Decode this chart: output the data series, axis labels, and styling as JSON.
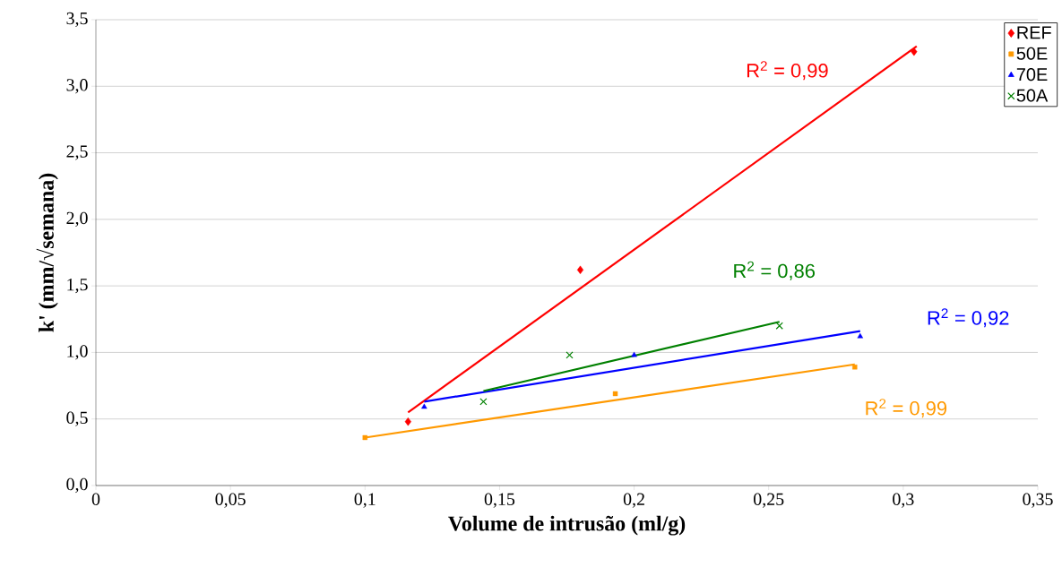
{
  "chart_data": {
    "type": "scatter",
    "xlabel": "Volume de intrusão (ml/g)",
    "ylabel": "k' (mm/√semana)",
    "xlim": [
      0,
      0.35
    ],
    "ylim": [
      0,
      3.5
    ],
    "xticks": [
      0,
      {
        "value": 0.05,
        "label": "0,05"
      },
      {
        "value": 0.1,
        "label": "0,1"
      },
      {
        "value": 0.15,
        "label": "0,15"
      },
      {
        "value": 0.2,
        "label": "0,2"
      },
      {
        "value": 0.25,
        "label": "0,25"
      },
      {
        "value": 0.3,
        "label": "0,3"
      },
      {
        "value": 0.35,
        "label": "0,35"
      }
    ],
    "yticks": [
      {
        "value": 0,
        "label": "0,0"
      },
      {
        "value": 0.5,
        "label": "0,5"
      },
      {
        "value": 1,
        "label": "1,0"
      },
      {
        "value": 1.5,
        "label": "1,5"
      },
      {
        "value": 2,
        "label": "2,0"
      },
      {
        "value": 2.5,
        "label": "2,5"
      },
      {
        "value": 3,
        "label": "3,0"
      },
      {
        "value": 3.5,
        "label": "3,5"
      }
    ],
    "grid": "y",
    "legend": "top right",
    "series": [
      {
        "name": "REF",
        "marker": "diamond",
        "color": "#ff0000",
        "x": [
          0.116,
          0.18,
          0.304
        ],
        "values": [
          0.48,
          1.62,
          3.26
        ]
      },
      {
        "name": "50E",
        "marker": "square",
        "color": "#ff9900",
        "x": [
          0.1,
          0.193,
          0.282
        ],
        "values": [
          0.36,
          0.69,
          0.89
        ]
      },
      {
        "name": "70E",
        "marker": "triangle",
        "color": "#0000ff",
        "x": [
          0.122,
          0.2,
          0.284
        ],
        "values": [
          0.59,
          0.98,
          1.12
        ]
      },
      {
        "name": "50A",
        "marker": "cross",
        "color": "#008000",
        "x": [
          0.144,
          0.176,
          0.254
        ],
        "values": [
          0.63,
          0.98,
          1.2
        ]
      },
      {
        "type": "line",
        "marker": "none",
        "color": "#ff0000",
        "x": [
          0.116,
          0.305
        ],
        "values": [
          0.55,
          3.3
        ]
      },
      {
        "type": "line",
        "marker": "none",
        "color": "#ff9900",
        "x": [
          0.1,
          0.282
        ],
        "values": [
          0.36,
          0.91
        ]
      },
      {
        "type": "line",
        "marker": "none",
        "color": "#0000ff",
        "x": [
          0.122,
          0.284
        ],
        "values": [
          0.63,
          1.16
        ]
      },
      {
        "type": "line",
        "marker": "none",
        "color": "#008000",
        "x": [
          0.144,
          0.254
        ],
        "values": [
          0.71,
          1.23
        ]
      }
    ],
    "annotations": [
      "R$^{2}$ = 0,99",
      "R$^{2}$ = 0,99",
      "R$^{2}$ = 0,92",
      "R$^{2}$ = 0,86"
    ]
  }
}
